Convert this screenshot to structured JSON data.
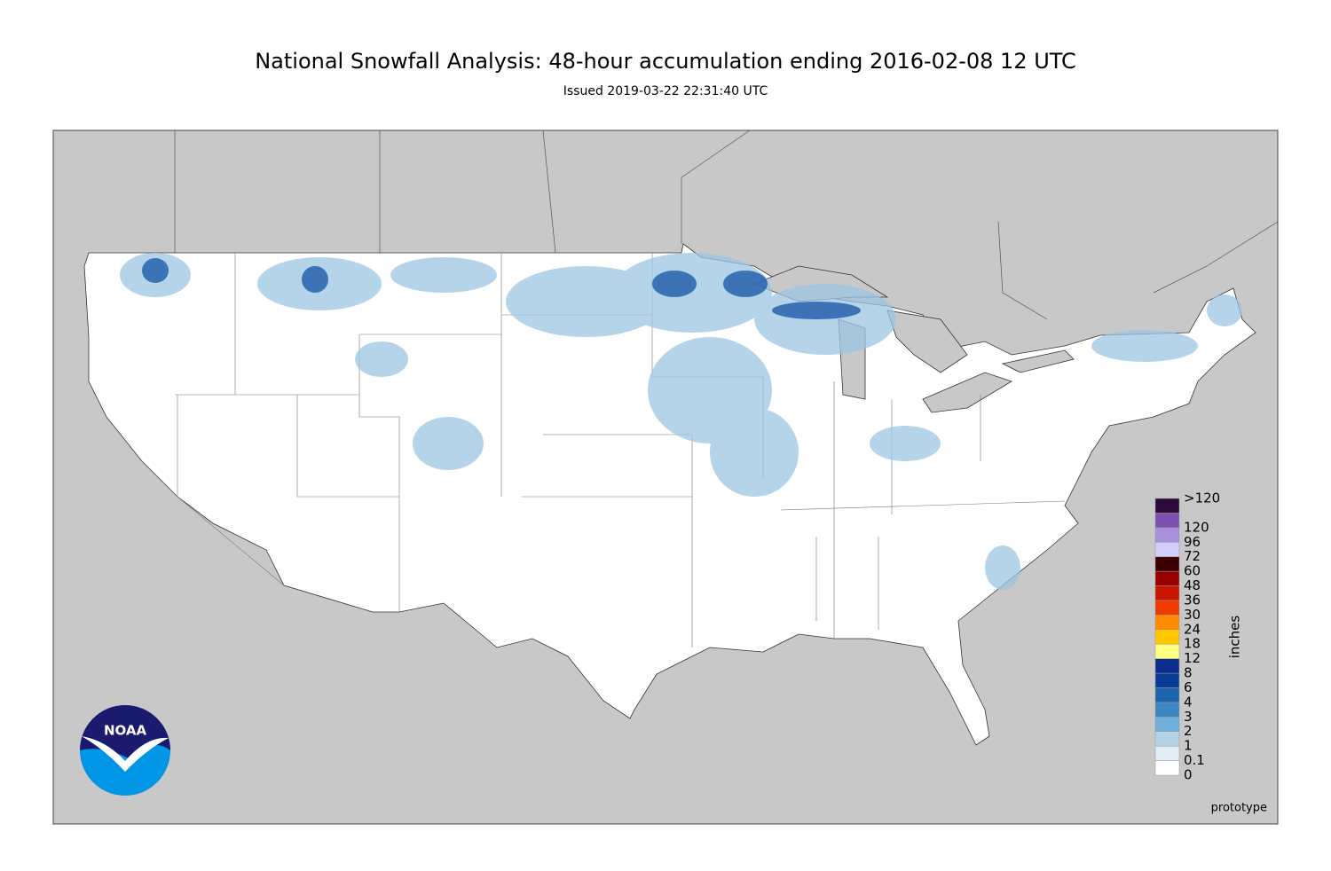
{
  "title": "National Snowfall Analysis: 48-hour accumulation ending 2016-02-08 12 UTC",
  "subtitle": "Issued 2019-03-22 22:31:40 UTC",
  "legend": {
    "title": "inches",
    "levels": [
      0,
      0.1,
      1,
      2,
      3,
      4,
      6,
      8,
      12,
      18,
      24,
      30,
      36,
      48,
      60,
      72,
      96,
      120,
      {
        "value": 120,
        "label": ">120"
      }
    ],
    "colors": [
      "#ffffff",
      "#e1edf5",
      "#b4d2e6",
      "#6eafdc",
      "#3c87c3",
      "#1e64aa",
      "#0a3c96",
      "#0a2d8c",
      "#ffff80",
      "#ffc800",
      "#ff8c00",
      "#f03c00",
      "#c81400",
      "#960000",
      "#3c0000",
      "#d2cdfa",
      "#a890dc",
      "#7c50b0",
      "#2d0a3c"
    ]
  },
  "note": "prototype",
  "logo": {
    "text": "NOAA"
  }
}
